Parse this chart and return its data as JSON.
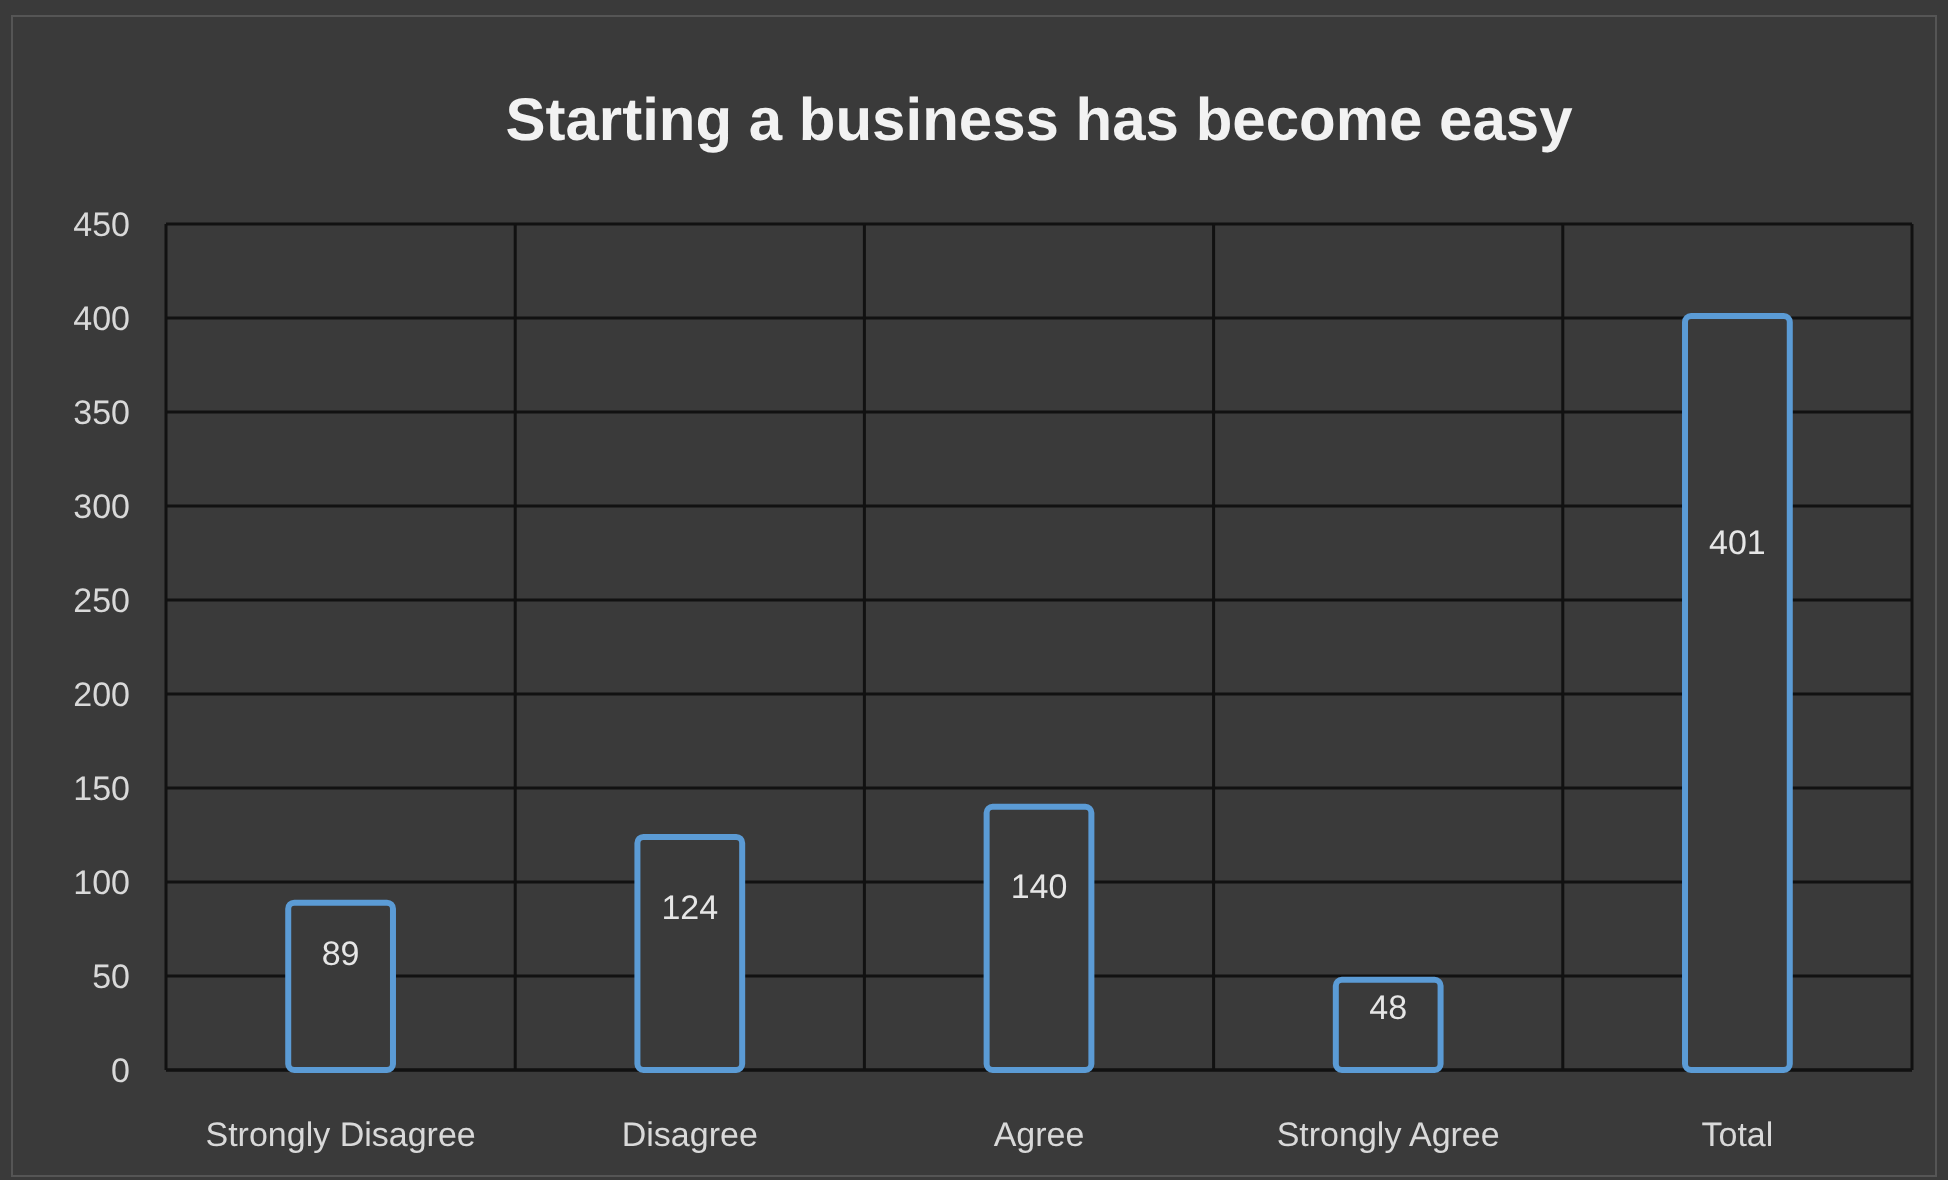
{
  "chart_data": {
    "type": "bar",
    "title": "Starting a business has become easy",
    "categories": [
      "Strongly Disagree",
      "Disagree",
      "Agree",
      "Strongly Agree",
      "Total"
    ],
    "values": [
      89,
      124,
      140,
      48,
      401
    ],
    "color": "#5b9bd5",
    "ylim": [
      0,
      450
    ],
    "yticks": [
      0,
      50,
      100,
      150,
      200,
      250,
      300,
      350,
      400,
      450
    ],
    "grid": true,
    "data_labels": true
  }
}
